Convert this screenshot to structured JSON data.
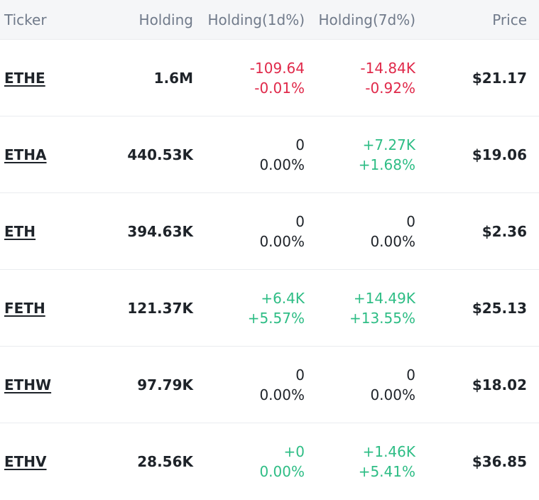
{
  "header": {
    "ticker": "Ticker",
    "holding": "Holding",
    "holding_1d": "Holding(1d%)",
    "holding_7d": "Holding(7d%)",
    "price": "Price"
  },
  "colors": {
    "negative": "#e0294a",
    "positive": "#2ebd85",
    "neutral": "#1e2329"
  },
  "rows": [
    {
      "ticker": "ETHE",
      "holding": "1.6M",
      "d1_amount": "-109.64",
      "d1_pct": "-0.01%",
      "d1_trend": "neg",
      "d7_amount": "-14.84K",
      "d7_pct": "-0.92%",
      "d7_trend": "neg",
      "price": "$21.17"
    },
    {
      "ticker": "ETHA",
      "holding": "440.53K",
      "d1_amount": "0",
      "d1_pct": "0.00%",
      "d1_trend": "neutral",
      "d7_amount": "+7.27K",
      "d7_pct": "+1.68%",
      "d7_trend": "pos",
      "price": "$19.06"
    },
    {
      "ticker": "ETH",
      "holding": "394.63K",
      "d1_amount": "0",
      "d1_pct": "0.00%",
      "d1_trend": "neutral",
      "d7_amount": "0",
      "d7_pct": "0.00%",
      "d7_trend": "neutral",
      "price": "$2.36"
    },
    {
      "ticker": "FETH",
      "holding": "121.37K",
      "d1_amount": "+6.4K",
      "d1_pct": "+5.57%",
      "d1_trend": "pos",
      "d7_amount": "+14.49K",
      "d7_pct": "+13.55%",
      "d7_trend": "pos",
      "price": "$25.13"
    },
    {
      "ticker": "ETHW",
      "holding": "97.79K",
      "d1_amount": "0",
      "d1_pct": "0.00%",
      "d1_trend": "neutral",
      "d7_amount": "0",
      "d7_pct": "0.00%",
      "d7_trend": "neutral",
      "price": "$18.02"
    },
    {
      "ticker": "ETHV",
      "holding": "28.56K",
      "d1_amount": "+0",
      "d1_pct": "0.00%",
      "d1_trend": "pos",
      "d7_amount": "+1.46K",
      "d7_pct": "+5.41%",
      "d7_trend": "pos",
      "price": "$36.85"
    }
  ]
}
